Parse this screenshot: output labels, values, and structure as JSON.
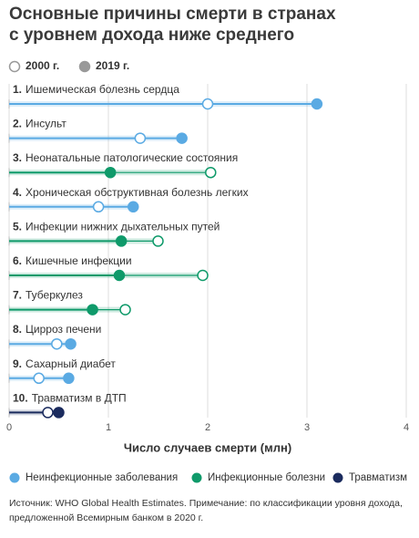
{
  "chart_data": {
    "type": "dumbbell",
    "title": [
      "Основные причины смерти в странах",
      "с уровнем дохода ниже среднего"
    ],
    "ranks": [
      "1.",
      "2.",
      "3.",
      "4.",
      "5.",
      "6.",
      "7.",
      "8.",
      "9.",
      "10."
    ],
    "categories": [
      "Ишемическая болезнь сердца",
      "Инсульт",
      "Неонатальные патологические состояния",
      "Хроническая обструктивная болезнь легких",
      "Инфекции нижних дыхательных путей",
      "Кишечные инфекции",
      "Туберкулез",
      "Цирроз печени",
      "Сахарный диабет",
      "Травматизм в ДТП"
    ],
    "groups": [
      {
        "name": "Неинфекционные заболевания",
        "color": "#5aaae3"
      },
      {
        "name": "Инфекционные болезни",
        "color": "#0f9a6a"
      },
      {
        "name": "Травматизм",
        "color": "#1b2b5e"
      }
    ],
    "category_group": [
      0,
      0,
      1,
      0,
      1,
      1,
      1,
      0,
      0,
      2
    ],
    "series": [
      {
        "name": "2000 г.",
        "values": [
          2.0,
          1.32,
          2.03,
          0.9,
          1.5,
          1.95,
          1.17,
          0.48,
          0.3,
          0.39
        ]
      },
      {
        "name": "2019 г.",
        "values": [
          3.1,
          1.74,
          1.02,
          1.25,
          1.13,
          1.11,
          0.84,
          0.62,
          0.6,
          0.5
        ]
      }
    ],
    "xlim": [
      0,
      4
    ],
    "xticks": [
      0,
      1,
      2,
      3,
      4
    ],
    "grid": true,
    "xlabel": "Число случаев смерти (млн)",
    "source": "Источник: WHO Global Health Estimates. Примечание: по классификации уровня дохода, предложенной Всемирным банком в 2020 г."
  }
}
